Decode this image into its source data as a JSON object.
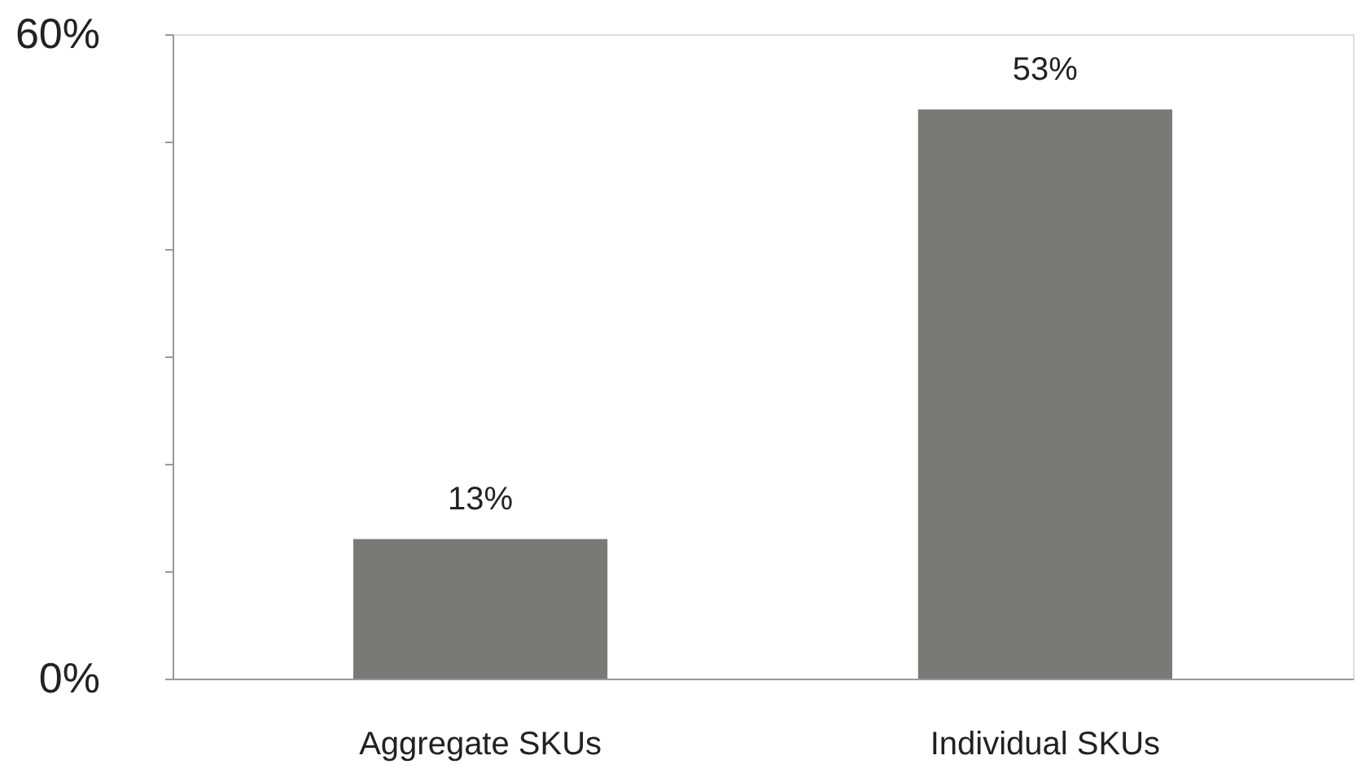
{
  "chart_data": {
    "type": "bar",
    "categories": [
      "Aggregate SKUs",
      "Individual SKUs"
    ],
    "values": [
      13,
      53
    ],
    "color": "#7a7975",
    "value_labels": [
      "13%",
      "53%"
    ],
    "ylim": [
      0,
      60
    ],
    "yticks": [
      {
        "value": 0,
        "label": "0%"
      },
      {
        "value": 10,
        "label": null
      },
      {
        "value": 20,
        "label": null
      },
      {
        "value": 30,
        "label": null
      },
      {
        "value": 40,
        "label": null
      },
      {
        "value": 50,
        "label": null
      },
      {
        "value": 60,
        "label": "60%"
      }
    ],
    "grid": false
  }
}
